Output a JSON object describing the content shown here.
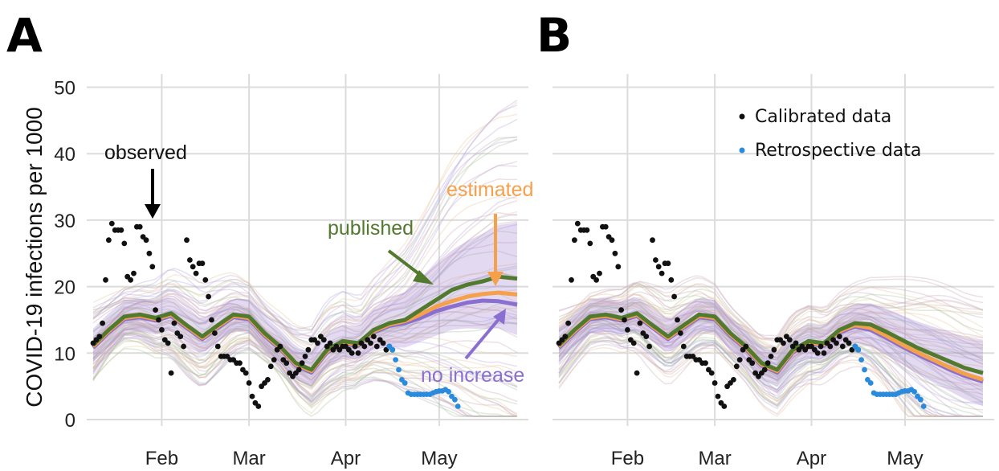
{
  "colors": {
    "published": "#527a2f",
    "estimated": "#f5a04a",
    "no_increase": "#8a6fd0",
    "observed": "#111111",
    "retrospective": "#2a8bdc",
    "band": "#c9a8b8",
    "grid": "#dcdcdc"
  },
  "chart_data": [
    {
      "panel": "A",
      "type": "line",
      "ylabel": "COVID-19 infections per 1000",
      "ylim": [
        0,
        52
      ],
      "yticks": [
        0,
        10,
        20,
        30,
        40,
        50
      ],
      "xticks": [
        {
          "label": "Feb",
          "day": 31
        },
        {
          "label": "Mar",
          "day": 59
        },
        {
          "label": "Apr",
          "day": 90
        },
        {
          "label": "May",
          "day": 120
        }
      ],
      "xlim_days": [
        9,
        145
      ],
      "grid": true,
      "annotations": [
        {
          "text": "observed",
          "target": "observed points"
        },
        {
          "text": "published",
          "target": "published"
        },
        {
          "text": "estimated",
          "target": "estimated"
        },
        {
          "text": "no increase",
          "target": "no increase"
        }
      ],
      "series": [
        {
          "name": "published",
          "x": [
            9,
            14,
            19,
            24,
            29,
            34,
            39,
            44,
            49,
            54,
            59,
            64,
            69,
            74,
            79,
            84,
            89,
            94,
            99,
            104,
            109,
            114,
            119,
            124,
            129,
            134,
            139,
            145
          ],
          "values": [
            11.2,
            13.5,
            15.5,
            15.8,
            15.3,
            16.0,
            14.2,
            12.5,
            14.2,
            15.8,
            15.5,
            13.0,
            11.0,
            8.5,
            7.5,
            10.5,
            11.8,
            11.5,
            13.5,
            14.5,
            15.0,
            16.5,
            18.0,
            19.5,
            20.3,
            20.8,
            21.5,
            21.2
          ]
        },
        {
          "name": "estimated",
          "x": [
            9,
            14,
            19,
            24,
            29,
            34,
            39,
            44,
            49,
            54,
            59,
            64,
            69,
            74,
            79,
            84,
            89,
            94,
            99,
            104,
            109,
            114,
            119,
            124,
            129,
            134,
            139,
            145
          ],
          "values": [
            11.0,
            13.3,
            15.3,
            15.6,
            15.1,
            15.8,
            14.0,
            12.3,
            14.0,
            15.6,
            15.3,
            12.8,
            10.8,
            8.3,
            7.3,
            10.3,
            11.6,
            11.3,
            13.3,
            14.3,
            14.8,
            15.8,
            17.0,
            17.8,
            18.5,
            18.9,
            19.1,
            18.8
          ]
        },
        {
          "name": "no increase",
          "x": [
            9,
            14,
            19,
            24,
            29,
            34,
            39,
            44,
            49,
            54,
            59,
            64,
            69,
            74,
            79,
            84,
            89,
            94,
            99,
            104,
            109,
            114,
            119,
            124,
            129,
            134,
            139,
            145
          ],
          "values": [
            10.8,
            13.1,
            15.1,
            15.4,
            14.9,
            15.6,
            13.8,
            12.1,
            13.8,
            15.4,
            15.1,
            12.6,
            10.6,
            8.1,
            7.1,
            10.1,
            11.4,
            11.1,
            13.1,
            14.1,
            14.5,
            15.3,
            16.3,
            17.0,
            17.6,
            17.9,
            17.8,
            17.3
          ]
        }
      ],
      "observed": {
        "x": [
          9,
          10,
          11,
          12,
          13,
          14,
          15,
          16,
          17,
          18,
          19,
          20,
          21,
          22,
          23,
          24,
          25,
          26,
          27,
          28,
          29,
          30,
          31,
          32,
          33,
          34,
          35,
          36,
          37,
          38,
          39,
          40,
          41,
          42,
          43,
          44,
          45,
          46,
          47,
          48,
          49,
          50,
          51,
          52,
          53,
          54,
          55,
          56,
          57,
          58,
          59,
          60,
          61,
          62,
          63,
          64,
          65,
          66,
          67,
          68,
          69,
          70,
          71,
          72,
          73,
          74,
          75,
          76,
          77,
          78,
          79,
          80,
          81,
          82,
          83,
          84,
          85,
          86,
          87,
          88,
          89,
          90,
          91,
          92,
          93,
          94,
          95,
          96,
          97,
          98,
          99,
          100,
          101,
          102,
          103,
          104,
          105
        ],
        "values": [
          11.5,
          12.0,
          12.5,
          14.5,
          21.0,
          27.0,
          29.5,
          28.5,
          28.5,
          28.5,
          26.5,
          21.5,
          21.0,
          22.0,
          29.0,
          29.0,
          27.5,
          27.0,
          25.0,
          23.0,
          16.5,
          15.0,
          13.5,
          12.0,
          11.5,
          7.0,
          14.5,
          13.0,
          12.5,
          11.0,
          27.0,
          24.0,
          23.0,
          22.0,
          23.5,
          23.5,
          21.0,
          18.5,
          15.0,
          13.0,
          11.0,
          9.5,
          9.5,
          9.5,
          9.0,
          9.0,
          8.5,
          8.5,
          7.5,
          7.0,
          5.5,
          3.5,
          2.5,
          2.0,
          5.0,
          5.5,
          6.0,
          8.0,
          9.0,
          10.5,
          11.0,
          9.0,
          8.5,
          7.0,
          6.5,
          7.0,
          7.5,
          8.5,
          9.5,
          10.5,
          12.0,
          12.0,
          11.5,
          12.5,
          12.0,
          11.0,
          11.5,
          10.5,
          11.0,
          10.5,
          11.0,
          11.0,
          10.5,
          10.0,
          11.0,
          10.0,
          11.5,
          11.0,
          12.0,
          11.5,
          12.5,
          11.0,
          12.0,
          11.5,
          10.5,
          11.0,
          10.5
        ]
      },
      "retrospective": {
        "x": [
          104,
          105,
          106,
          107,
          108,
          109,
          110,
          111,
          112,
          113,
          114,
          115,
          116,
          117,
          118,
          119,
          120,
          121,
          122,
          123,
          124,
          125,
          126
        ],
        "values": [
          11.0,
          10.5,
          9.0,
          7.5,
          6.0,
          5.5,
          4.0,
          3.8,
          3.8,
          3.8,
          3.8,
          3.8,
          3.8,
          3.8,
          4.0,
          4.2,
          4.3,
          4.3,
          4.5,
          4.2,
          3.5,
          3.0,
          2.0
        ]
      }
    },
    {
      "panel": "B",
      "type": "line",
      "ylim": [
        0,
        52
      ],
      "xticks": [
        {
          "label": "Feb",
          "day": 31
        },
        {
          "label": "Mar",
          "day": 59
        },
        {
          "label": "Apr",
          "day": 90
        },
        {
          "label": "May",
          "day": 120
        }
      ],
      "xlim_days": [
        9,
        145
      ],
      "grid": true,
      "legend": {
        "placement": "top-right",
        "entries": [
          {
            "label": "Calibrated data",
            "color": "#111111"
          },
          {
            "label": "Retrospective data",
            "color": "#2a8bdc"
          }
        ]
      },
      "series": [
        {
          "name": "published",
          "x": [
            9,
            14,
            19,
            24,
            29,
            34,
            39,
            44,
            49,
            54,
            59,
            64,
            69,
            74,
            79,
            84,
            89,
            94,
            99,
            104,
            109,
            114,
            119,
            124,
            129,
            134,
            139,
            145
          ],
          "values": [
            11.2,
            13.5,
            15.5,
            15.8,
            15.3,
            16.0,
            14.2,
            12.5,
            14.2,
            15.8,
            15.5,
            13.0,
            11.0,
            8.5,
            7.5,
            10.5,
            11.8,
            11.5,
            13.5,
            14.5,
            14.3,
            13.2,
            12.0,
            10.8,
            9.8,
            8.8,
            7.8,
            7.0
          ]
        },
        {
          "name": "estimated",
          "x": [
            9,
            14,
            19,
            24,
            29,
            34,
            39,
            44,
            49,
            54,
            59,
            64,
            69,
            74,
            79,
            84,
            89,
            94,
            99,
            104,
            109,
            114,
            119,
            124,
            129,
            134,
            139,
            145
          ],
          "values": [
            11.0,
            13.3,
            15.3,
            15.6,
            15.1,
            15.8,
            14.0,
            12.3,
            14.0,
            15.6,
            15.3,
            12.8,
            10.8,
            8.3,
            7.3,
            10.3,
            11.6,
            11.3,
            13.3,
            14.2,
            13.8,
            12.6,
            11.3,
            10.1,
            9.0,
            7.9,
            6.9,
            6.0
          ]
        },
        {
          "name": "no increase",
          "x": [
            9,
            14,
            19,
            24,
            29,
            34,
            39,
            44,
            49,
            54,
            59,
            64,
            69,
            74,
            79,
            84,
            89,
            94,
            99,
            104,
            109,
            114,
            119,
            124,
            129,
            134,
            139,
            145
          ],
          "values": [
            10.8,
            13.1,
            15.1,
            15.4,
            14.9,
            15.6,
            13.8,
            12.1,
            13.8,
            15.4,
            15.1,
            12.6,
            10.6,
            8.1,
            7.1,
            10.1,
            11.4,
            11.1,
            13.1,
            14.0,
            13.5,
            12.3,
            11.0,
            9.8,
            8.7,
            7.6,
            6.6,
            5.7
          ]
        }
      ],
      "observed": {
        "x": [
          9,
          10,
          11,
          12,
          13,
          14,
          15,
          16,
          17,
          18,
          19,
          20,
          21,
          22,
          23,
          24,
          25,
          26,
          27,
          28,
          29,
          30,
          31,
          32,
          33,
          34,
          35,
          36,
          37,
          38,
          39,
          40,
          41,
          42,
          43,
          44,
          45,
          46,
          47,
          48,
          49,
          50,
          51,
          52,
          53,
          54,
          55,
          56,
          57,
          58,
          59,
          60,
          61,
          62,
          63,
          64,
          65,
          66,
          67,
          68,
          69,
          70,
          71,
          72,
          73,
          74,
          75,
          76,
          77,
          78,
          79,
          80,
          81,
          82,
          83,
          84,
          85,
          86,
          87,
          88,
          89,
          90,
          91,
          92,
          93,
          94,
          95,
          96,
          97,
          98,
          99,
          100,
          101,
          102,
          103,
          104,
          105
        ],
        "values": [
          11.5,
          12.0,
          12.5,
          14.5,
          21.0,
          27.0,
          29.5,
          28.5,
          28.5,
          28.5,
          26.5,
          21.5,
          21.0,
          22.0,
          29.0,
          29.0,
          27.5,
          27.0,
          25.0,
          23.0,
          16.5,
          15.0,
          13.5,
          12.0,
          11.5,
          7.0,
          14.5,
          13.0,
          12.5,
          11.0,
          27.0,
          24.0,
          23.0,
          22.0,
          23.5,
          23.5,
          21.0,
          18.5,
          15.0,
          13.0,
          11.0,
          9.5,
          9.5,
          9.5,
          9.0,
          9.0,
          8.5,
          8.5,
          7.5,
          7.0,
          5.5,
          3.5,
          2.5,
          2.0,
          5.0,
          5.5,
          6.0,
          8.0,
          9.0,
          10.5,
          11.0,
          9.0,
          8.5,
          7.0,
          6.5,
          7.0,
          7.5,
          8.5,
          9.5,
          10.5,
          12.0,
          12.0,
          11.5,
          12.5,
          12.0,
          11.0,
          11.5,
          10.5,
          11.0,
          10.5,
          11.0,
          11.0,
          10.5,
          10.0,
          11.0,
          10.0,
          11.5,
          11.0,
          12.0,
          11.5,
          12.5,
          11.0,
          12.0,
          11.5,
          10.5,
          11.0,
          10.5
        ]
      },
      "retrospective": {
        "x": [
          104,
          105,
          106,
          107,
          108,
          109,
          110,
          111,
          112,
          113,
          114,
          115,
          116,
          117,
          118,
          119,
          120,
          121,
          122,
          123,
          124,
          125,
          126
        ],
        "values": [
          11.0,
          10.5,
          9.0,
          7.5,
          6.0,
          5.5,
          4.0,
          3.8,
          3.8,
          3.8,
          3.8,
          3.8,
          3.8,
          3.8,
          4.0,
          4.2,
          4.3,
          4.3,
          4.5,
          4.2,
          3.5,
          3.0,
          2.0
        ]
      }
    }
  ]
}
